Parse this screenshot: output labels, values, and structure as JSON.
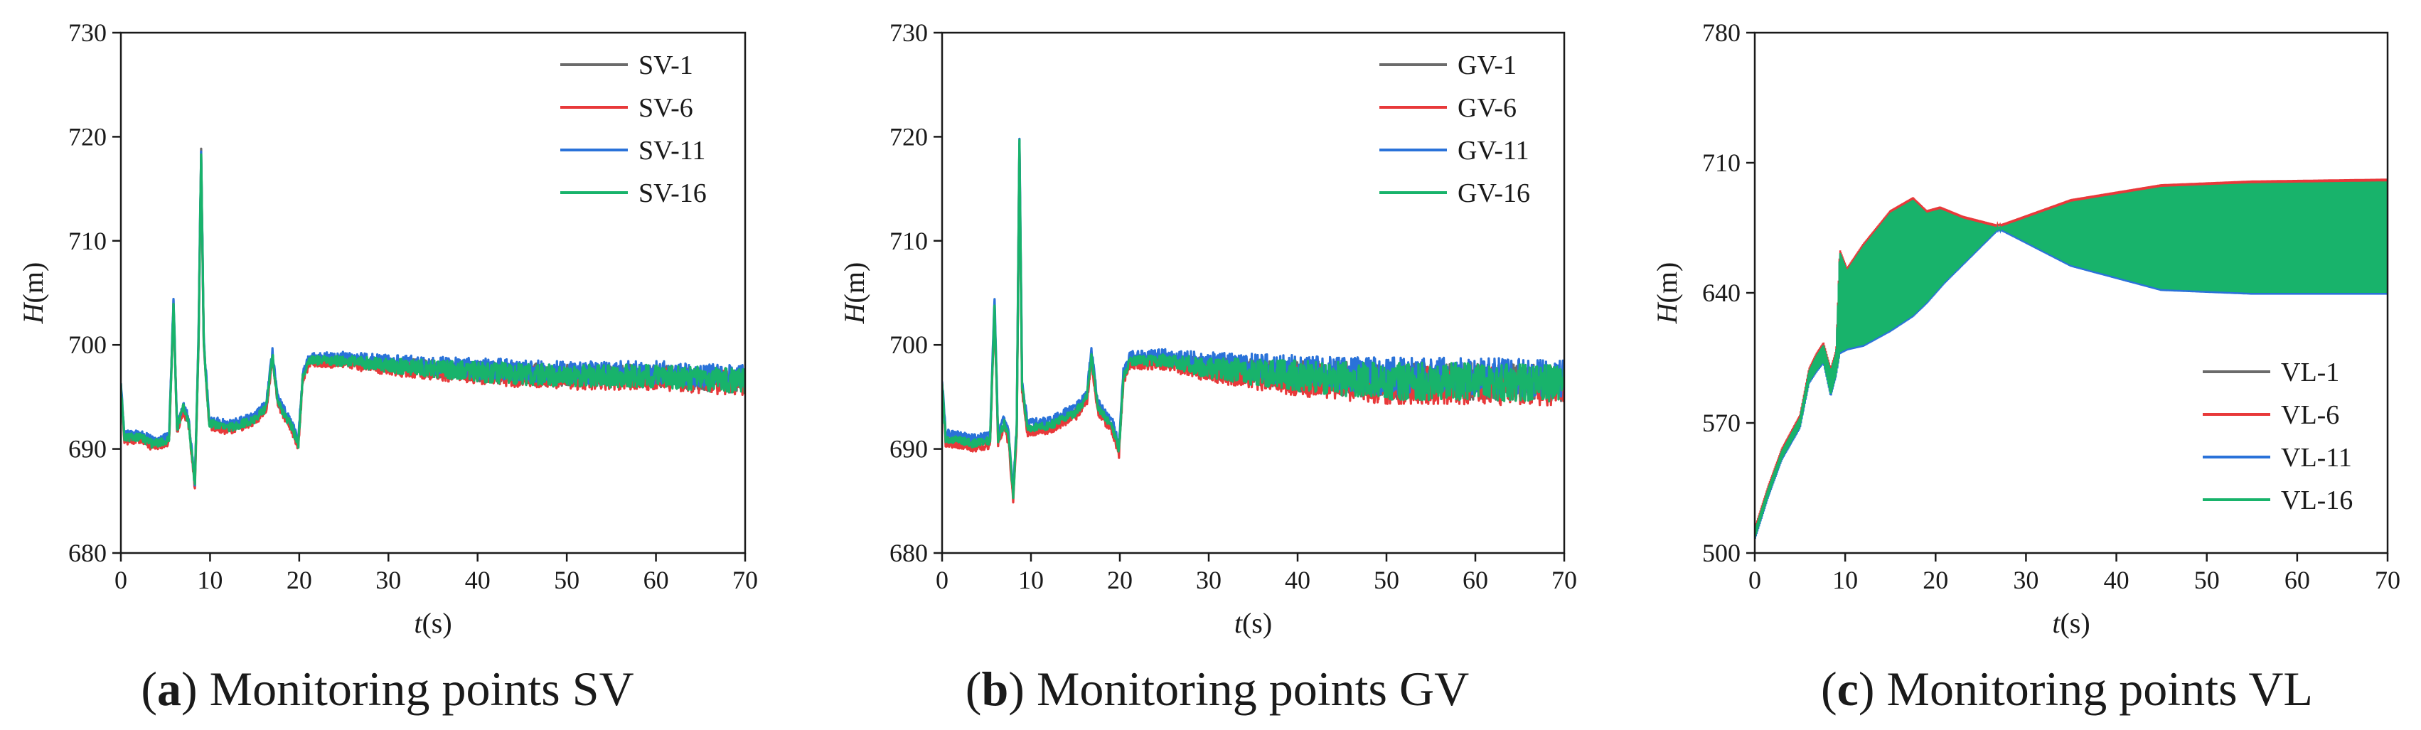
{
  "chart_data": [
    {
      "type": "line",
      "panel_label": "a",
      "caption": "Monitoring points SV",
      "xlabel_var": "t",
      "xlabel_unit": "(s)",
      "ylabel_var": "H",
      "ylabel_unit": "(m)",
      "xlim": [
        0,
        70
      ],
      "ylim": [
        680,
        730
      ],
      "xticks": [
        0,
        10,
        20,
        30,
        40,
        50,
        60,
        70
      ],
      "yticks": [
        680,
        690,
        700,
        710,
        720,
        730
      ],
      "legend_position": "top-right",
      "series": [
        {
          "name": "SV-1",
          "color": "#6b6b6b"
        },
        {
          "name": "SV-6",
          "color": "#e8393a"
        },
        {
          "name": "SV-11",
          "color": "#2a72d9"
        },
        {
          "name": "SV-16",
          "color": "#18b36b"
        }
      ],
      "profile": {
        "style": "narrow",
        "knots": [
          [
            0,
            696
          ],
          [
            0.4,
            691
          ],
          [
            2,
            691.2
          ],
          [
            3.5,
            690.5
          ],
          [
            5.4,
            690.8
          ],
          [
            5.9,
            704
          ],
          [
            6.3,
            692
          ],
          [
            7,
            694
          ],
          [
            7.6,
            692.5
          ],
          [
            8.3,
            686.5
          ],
          [
            8.7,
            700
          ],
          [
            9.0,
            718.5
          ],
          [
            9.3,
            700
          ],
          [
            9.9,
            692.5
          ],
          [
            12,
            692
          ],
          [
            15,
            692.8
          ],
          [
            16.3,
            694
          ],
          [
            17.0,
            699
          ],
          [
            17.6,
            694.5
          ],
          [
            19.2,
            692
          ],
          [
            19.9,
            690.5
          ],
          [
            20.4,
            697
          ],
          [
            21.2,
            698.5
          ],
          [
            25,
            698.5
          ],
          [
            30,
            698
          ],
          [
            40,
            697.4
          ],
          [
            50,
            697
          ],
          [
            60,
            697
          ],
          [
            70,
            696.5
          ]
        ],
        "amp_knots": [
          [
            0,
            0.4
          ],
          [
            20,
            0.4
          ],
          [
            25,
            0.5
          ],
          [
            30,
            0.7
          ],
          [
            40,
            1.0
          ],
          [
            50,
            1.1
          ],
          [
            60,
            1.1
          ],
          [
            70,
            1.2
          ]
        ],
        "series_offsets": [
          0.0,
          -0.25,
          0.35,
          0.0
        ]
      }
    },
    {
      "type": "line",
      "panel_label": "b",
      "caption": "Monitoring points GV",
      "xlabel_var": "t",
      "xlabel_unit": "(s)",
      "ylabel_var": "H",
      "ylabel_unit": "(m)",
      "xlim": [
        0,
        70
      ],
      "ylim": [
        680,
        730
      ],
      "xticks": [
        0,
        10,
        20,
        30,
        40,
        50,
        60,
        70
      ],
      "yticks": [
        680,
        690,
        700,
        710,
        720,
        730
      ],
      "legend_position": "top-right",
      "series": [
        {
          "name": "GV-1",
          "color": "#6b6b6b"
        },
        {
          "name": "GV-6",
          "color": "#e8393a"
        },
        {
          "name": "GV-11",
          "color": "#2a72d9"
        },
        {
          "name": "GV-16",
          "color": "#18b36b"
        }
      ],
      "profile": {
        "style": "narrow",
        "knots": [
          [
            0,
            696
          ],
          [
            0.4,
            691
          ],
          [
            2,
            690.8
          ],
          [
            3.5,
            690.5
          ],
          [
            5.4,
            690.8
          ],
          [
            5.9,
            704
          ],
          [
            6.3,
            691
          ],
          [
            7,
            692.5
          ],
          [
            7.5,
            691
          ],
          [
            8.0,
            685.5
          ],
          [
            8.4,
            692
          ],
          [
            8.7,
            719.5
          ],
          [
            9.0,
            696
          ],
          [
            9.6,
            692
          ],
          [
            12,
            692.2
          ],
          [
            15,
            693.5
          ],
          [
            16.3,
            695
          ],
          [
            16.8,
            699
          ],
          [
            17.5,
            694
          ],
          [
            19.2,
            692
          ],
          [
            19.9,
            689.8
          ],
          [
            20.4,
            697
          ],
          [
            21.2,
            698.5
          ],
          [
            25,
            698.5
          ],
          [
            30,
            697.8
          ],
          [
            40,
            697
          ],
          [
            50,
            696.5
          ],
          [
            60,
            696.5
          ],
          [
            70,
            696.2
          ]
        ],
        "amp_knots": [
          [
            0,
            0.4
          ],
          [
            20,
            0.4
          ],
          [
            25,
            0.6
          ],
          [
            30,
            1.0
          ],
          [
            40,
            1.5
          ],
          [
            50,
            1.8
          ],
          [
            60,
            1.8
          ],
          [
            70,
            1.8
          ]
        ],
        "series_offsets": [
          0.0,
          -0.4,
          0.5,
          0.0
        ]
      }
    },
    {
      "type": "line",
      "panel_label": "c",
      "caption": "Monitoring points VL",
      "xlabel_var": "t",
      "xlabel_unit": "(s)",
      "ylabel_var": "H",
      "ylabel_unit": "(m)",
      "xlim": [
        0,
        70
      ],
      "ylim": [
        500,
        780
      ],
      "xticks": [
        0,
        10,
        20,
        30,
        40,
        50,
        60,
        70
      ],
      "yticks": [
        500,
        570,
        640,
        710,
        780
      ],
      "legend_position": "bottom-right",
      "series": [
        {
          "name": "VL-1",
          "color": "#6b6b6b"
        },
        {
          "name": "VL-6",
          "color": "#e8393a"
        },
        {
          "name": "VL-11",
          "color": "#2a72d9"
        },
        {
          "name": "VL-16",
          "color": "#18b36b"
        }
      ],
      "profile": {
        "style": "envelope",
        "upper": [
          [
            0,
            512
          ],
          [
            1.5,
            535
          ],
          [
            3,
            555
          ],
          [
            5,
            573
          ],
          [
            6,
            598
          ],
          [
            6.8,
            606
          ],
          [
            7.6,
            612
          ],
          [
            8.4,
            598
          ],
          [
            9.0,
            608
          ],
          [
            9.4,
            662
          ],
          [
            10.2,
            652
          ],
          [
            12,
            665
          ],
          [
            15,
            683
          ],
          [
            17.5,
            690
          ],
          [
            19,
            683
          ],
          [
            20.5,
            685
          ],
          [
            23,
            680
          ],
          [
            27,
            675
          ],
          [
            35,
            689
          ],
          [
            45,
            697
          ],
          [
            55,
            699
          ],
          [
            70,
            700
          ]
        ],
        "lower": [
          [
            0,
            508
          ],
          [
            1.5,
            531
          ],
          [
            3,
            551
          ],
          [
            5,
            568
          ],
          [
            6,
            592
          ],
          [
            6.8,
            598
          ],
          [
            7.6,
            603
          ],
          [
            8.4,
            585
          ],
          [
            9.0,
            596
          ],
          [
            9.4,
            608
          ],
          [
            10.2,
            610
          ],
          [
            12,
            612
          ],
          [
            15,
            620
          ],
          [
            17.5,
            628
          ],
          [
            19,
            635
          ],
          [
            21,
            646
          ],
          [
            27,
            675
          ],
          [
            35,
            655
          ],
          [
            45,
            642
          ],
          [
            55,
            640
          ],
          [
            70,
            640
          ]
        ],
        "series_offsets": [
          0.0,
          1.5,
          -1.0,
          0.0
        ]
      }
    }
  ]
}
